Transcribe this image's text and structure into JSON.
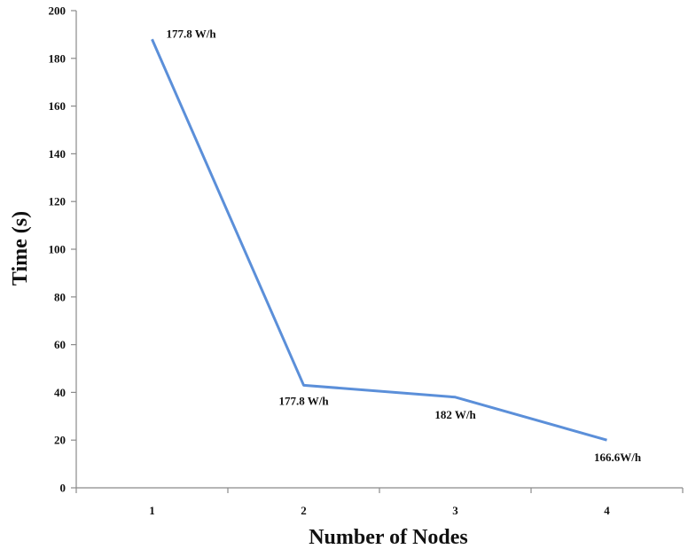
{
  "chart_data": {
    "type": "line",
    "title": "",
    "xlabel": "Number of Nodes",
    "ylabel": "Time (s)",
    "categories": [
      "1",
      "2",
      "3",
      "4"
    ],
    "ylim": [
      0,
      200
    ],
    "yticks": [
      "0",
      "20",
      "40",
      "60",
      "80",
      "100",
      "120",
      "140",
      "160",
      "180",
      "200"
    ],
    "grid": false,
    "legend": "none",
    "line_color": "#5b8fd9",
    "series": [
      {
        "values": [
          188,
          43,
          38,
          20
        ],
        "labels": [
          "177.8 W/h",
          "177.8 W/h",
          "182 W/h",
          "166.6W/h"
        ]
      }
    ]
  }
}
